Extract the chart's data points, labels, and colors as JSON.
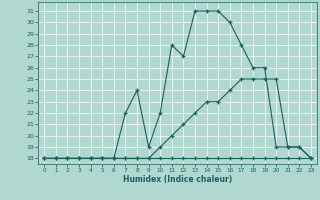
{
  "title": "",
  "xlabel": "Humidex (Indice chaleur)",
  "bg_color": "#b0d8d0",
  "line_color": "#1a5f5f",
  "grid_color": "#ffffff",
  "xlim": [
    -0.5,
    23.5
  ],
  "ylim": [
    17.5,
    31.8
  ],
  "yticks": [
    18,
    19,
    20,
    21,
    22,
    23,
    24,
    25,
    26,
    27,
    28,
    29,
    30,
    31
  ],
  "xticks": [
    0,
    1,
    2,
    3,
    4,
    5,
    6,
    7,
    8,
    9,
    10,
    11,
    12,
    13,
    14,
    15,
    16,
    17,
    18,
    19,
    20,
    21,
    22,
    23
  ],
  "series1_x": [
    0,
    1,
    2,
    3,
    4,
    5,
    6,
    7,
    8,
    9,
    10,
    11,
    12,
    13,
    14,
    15,
    16,
    17,
    18,
    19,
    20,
    21,
    22,
    23
  ],
  "series1_y": [
    18,
    18,
    18,
    18,
    18,
    18,
    18,
    18,
    18,
    18,
    18,
    18,
    18,
    18,
    18,
    18,
    18,
    18,
    18,
    18,
    18,
    18,
    18,
    18
  ],
  "series2_x": [
    0,
    1,
    2,
    3,
    4,
    5,
    6,
    7,
    8,
    9,
    10,
    11,
    12,
    13,
    14,
    15,
    16,
    17,
    18,
    19,
    20,
    21,
    22,
    23
  ],
  "series2_y": [
    18,
    18,
    18,
    18,
    18,
    18,
    18,
    18,
    18,
    18,
    19,
    20,
    21,
    22,
    23,
    23,
    24,
    25,
    25,
    25,
    25,
    19,
    19,
    18
  ],
  "series3_x": [
    0,
    1,
    2,
    3,
    4,
    5,
    6,
    7,
    8,
    9,
    10,
    11,
    12,
    13,
    14,
    15,
    16,
    17,
    18,
    19,
    20,
    21,
    22,
    23
  ],
  "series3_y": [
    18,
    18,
    18,
    18,
    18,
    18,
    18,
    22,
    24,
    19,
    22,
    28,
    27,
    31,
    31,
    31,
    30,
    28,
    26,
    26,
    19,
    19,
    19,
    18
  ]
}
